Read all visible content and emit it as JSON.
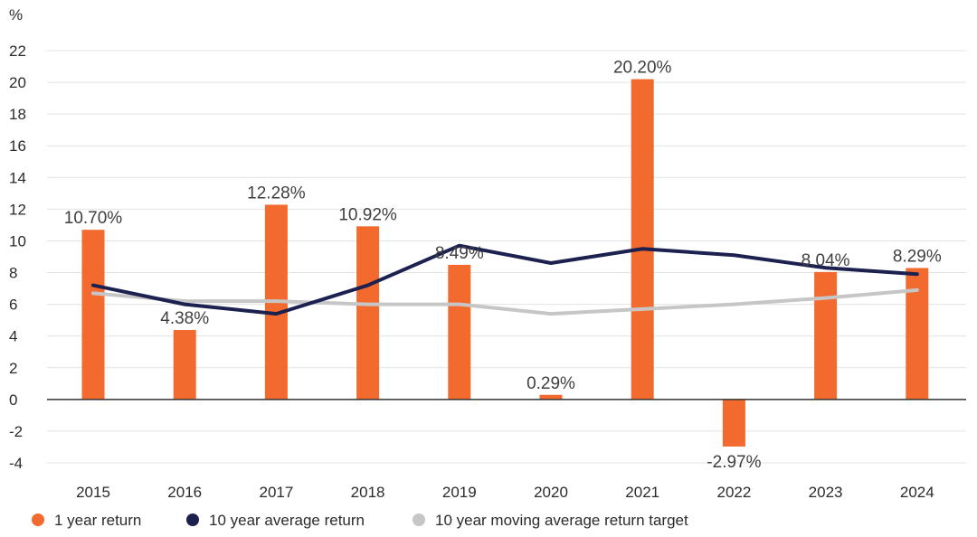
{
  "chart_data": {
    "type": "bar",
    "unit_label": "%",
    "categories": [
      "2015",
      "2016",
      "2017",
      "2018",
      "2019",
      "2020",
      "2021",
      "2022",
      "2023",
      "2024"
    ],
    "ylim": [
      -4,
      22
    ],
    "yticks": [
      -4,
      -2,
      0,
      2,
      4,
      6,
      8,
      10,
      12,
      14,
      16,
      18,
      20,
      22
    ],
    "grid": true,
    "series": [
      {
        "name": "1 year return",
        "type": "bar",
        "color": "#f26a2e",
        "values": [
          10.7,
          4.38,
          12.28,
          10.92,
          8.49,
          0.29,
          20.2,
          -2.97,
          8.04,
          8.29
        ],
        "labels": [
          "10.70%",
          "4.38%",
          "12.28%",
          "10.92%",
          "8.49%",
          "0.29%",
          "20.20%",
          "-2.97%",
          "8.04%",
          "8.29%"
        ]
      },
      {
        "name": "10 year average return",
        "type": "line",
        "color": "#1c2150",
        "values": [
          7.2,
          6.0,
          5.4,
          7.2,
          9.7,
          8.6,
          9.5,
          9.1,
          8.3,
          7.9
        ]
      },
      {
        "name": "10 year moving average return target",
        "type": "line",
        "color": "#c6c6c6",
        "values": [
          6.7,
          6.2,
          6.2,
          6.0,
          6.0,
          5.4,
          5.7,
          6.0,
          6.4,
          6.9
        ]
      }
    ],
    "legend_position": "bottom-left"
  }
}
